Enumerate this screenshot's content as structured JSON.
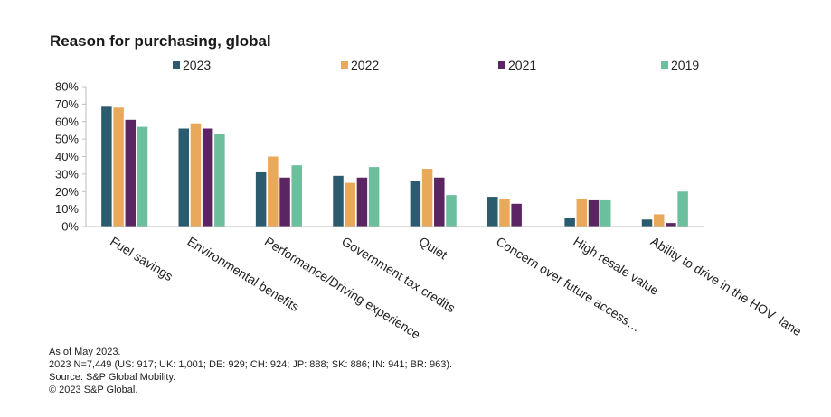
{
  "chart_data": {
    "type": "bar",
    "title": "Reason for purchasing, global",
    "xlabel": "",
    "ylabel": "",
    "ylim": [
      0,
      80
    ],
    "y_ticks": [
      "0%",
      "10%",
      "20%",
      "30%",
      "40%",
      "50%",
      "60%",
      "70%",
      "80%"
    ],
    "categories": [
      "Fuel savings",
      "Environmental benefits",
      "Performance/Driving experience",
      "Government tax credits",
      "Quiet",
      "Concern over future access…",
      "High resale value",
      "Ability to drive in the HOV  lane"
    ],
    "series": [
      {
        "name": "2023",
        "color": "#2b5b6e",
        "values": [
          69,
          56,
          31,
          29,
          26,
          17,
          5,
          4
        ]
      },
      {
        "name": "2022",
        "color": "#e8a95b",
        "values": [
          68,
          59,
          40,
          25,
          33,
          16,
          16,
          7
        ]
      },
      {
        "name": "2021",
        "color": "#5b2563",
        "values": [
          61,
          56,
          28,
          28,
          28,
          13,
          15,
          2
        ]
      },
      {
        "name": "2019",
        "color": "#6cbf9c",
        "values": [
          57,
          53,
          35,
          34,
          18,
          0,
          15,
          20
        ]
      }
    ],
    "legend_position": "top",
    "grid": false
  },
  "footnotes": [
    "As of May 2023.",
    "2023 N=7,449 (US: 917; UK: 1,001; DE: 929; CH: 924; JP: 888; SK: 886; IN: 941; BR: 963).",
    "Source: S&P Global Mobility.",
    "© 2023 S&P Global."
  ]
}
